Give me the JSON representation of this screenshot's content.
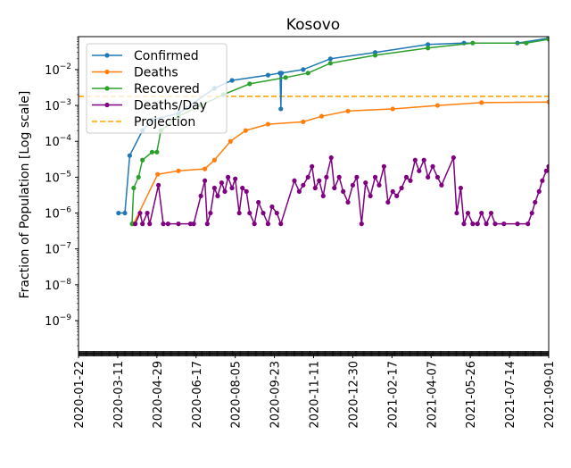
{
  "chart_data": {
    "type": "line",
    "title": "Kosovo",
    "xlabel": "",
    "ylabel": "Fraction of Population [Log scale]",
    "yscale": "log",
    "ylim": [
      1.2e-10,
      0.083
    ],
    "xlim": [
      "2020-01-22",
      "2021-09-01"
    ],
    "grid": false,
    "legend_position": "top-left",
    "x_tick_labels": [
      "2020-01-22",
      "2020-03-11",
      "2020-04-29",
      "2020-06-17",
      "2020-08-05",
      "2020-09-23",
      "2020-11-11",
      "2020-12-30",
      "2021-02-17",
      "2021-04-07",
      "2021-05-26",
      "2021-07-14",
      "2021-09-01"
    ],
    "y_ticks": [
      {
        "value": 0.01,
        "base": "10",
        "exp": "−2"
      },
      {
        "value": 0.001,
        "base": "10",
        "exp": "−3"
      },
      {
        "value": 0.0001,
        "base": "10",
        "exp": "−4"
      },
      {
        "value": 1e-05,
        "base": "10",
        "exp": "−5"
      },
      {
        "value": 1e-06,
        "base": "10",
        "exp": "−6"
      },
      {
        "value": 1e-07,
        "base": "10",
        "exp": "−7"
      },
      {
        "value": 1e-08,
        "base": "10",
        "exp": "−8"
      },
      {
        "value": 1e-09,
        "base": "10",
        "exp": "−9"
      }
    ],
    "series": [
      {
        "name": "Confirmed",
        "color": "#1f77b4",
        "points": [
          [
            "2020-03-12",
            1e-06
          ],
          [
            "2020-03-20",
            1e-06
          ],
          [
            "2020-03-26",
            4e-05
          ],
          [
            "2020-04-11",
            0.0002
          ],
          [
            "2020-04-23",
            0.0004
          ],
          [
            "2020-05-26",
            0.0006
          ],
          [
            "2020-07-10",
            0.003
          ],
          [
            "2020-08-01",
            0.005
          ],
          [
            "2020-09-15",
            0.007
          ],
          [
            "2020-09-30",
            0.008
          ],
          [
            "2020-10-01",
            0.0008
          ],
          [
            "2020-10-02",
            0.008
          ],
          [
            "2020-10-29",
            0.01
          ],
          [
            "2020-12-02",
            0.02
          ],
          [
            "2021-01-27",
            0.03
          ],
          [
            "2021-04-03",
            0.05
          ],
          [
            "2021-05-18",
            0.055
          ],
          [
            "2021-07-24",
            0.055
          ],
          [
            "2021-09-01",
            0.075
          ]
        ]
      },
      {
        "name": "Deaths",
        "color": "#ff7f0e",
        "points": [
          [
            "2020-03-31",
            5e-07
          ],
          [
            "2020-04-30",
            1.2e-05
          ],
          [
            "2020-05-26",
            1.5e-05
          ],
          [
            "2020-06-28",
            1.7e-05
          ],
          [
            "2020-07-10",
            3e-05
          ],
          [
            "2020-07-30",
            0.0001
          ],
          [
            "2020-08-18",
            0.0002
          ],
          [
            "2020-09-15",
            0.0003
          ],
          [
            "2020-10-29",
            0.00035
          ],
          [
            "2020-11-21",
            0.0005
          ],
          [
            "2020-12-24",
            0.0007
          ],
          [
            "2021-02-18",
            0.0008
          ],
          [
            "2021-04-15",
            0.001
          ],
          [
            "2021-06-09",
            0.0012
          ],
          [
            "2021-09-01",
            0.00125
          ]
        ]
      },
      {
        "name": "Recovered",
        "color": "#2ca02c",
        "points": [
          [
            "2020-03-29",
            5e-07
          ],
          [
            "2020-03-31",
            5e-06
          ],
          [
            "2020-04-06",
            1e-05
          ],
          [
            "2020-04-11",
            3e-05
          ],
          [
            "2020-04-23",
            5e-05
          ],
          [
            "2020-04-29",
            5e-05
          ],
          [
            "2020-05-04",
            0.0002
          ],
          [
            "2020-05-26",
            0.0005
          ],
          [
            "2020-06-23",
            0.001
          ],
          [
            "2020-07-21",
            0.002
          ],
          [
            "2020-08-23",
            0.004
          ],
          [
            "2020-10-07",
            0.006
          ],
          [
            "2020-11-04",
            0.008
          ],
          [
            "2020-12-02",
            0.015
          ],
          [
            "2021-01-27",
            0.025
          ],
          [
            "2021-04-03",
            0.04
          ],
          [
            "2021-05-29",
            0.055
          ],
          [
            "2021-08-04",
            0.055
          ],
          [
            "2021-09-01",
            0.07
          ]
        ]
      },
      {
        "name": "Deaths/Day",
        "color": "#800080",
        "points": [
          [
            "2020-04-02",
            5e-07
          ],
          [
            "2020-04-08",
            1e-06
          ],
          [
            "2020-04-11",
            5e-07
          ],
          [
            "2020-04-17",
            1e-06
          ],
          [
            "2020-04-20",
            5e-07
          ],
          [
            "2020-05-01",
            6e-06
          ],
          [
            "2020-05-07",
            5e-07
          ],
          [
            "2020-05-13",
            5e-07
          ],
          [
            "2020-05-26",
            5e-07
          ],
          [
            "2020-06-10",
            5e-07
          ],
          [
            "2020-06-14",
            5e-07
          ],
          [
            "2020-06-23",
            3e-06
          ],
          [
            "2020-06-28",
            8e-06
          ],
          [
            "2020-07-01",
            5e-07
          ],
          [
            "2020-07-05",
            1e-06
          ],
          [
            "2020-07-10",
            5e-06
          ],
          [
            "2020-07-14",
            3e-06
          ],
          [
            "2020-07-19",
            7e-06
          ],
          [
            "2020-07-23",
            4e-06
          ],
          [
            "2020-07-27",
            1e-05
          ],
          [
            "2020-08-01",
            5e-06
          ],
          [
            "2020-08-05",
            9e-06
          ],
          [
            "2020-08-10",
            1e-06
          ],
          [
            "2020-08-14",
            5e-06
          ],
          [
            "2020-08-19",
            4e-06
          ],
          [
            "2020-08-23",
            1e-06
          ],
          [
            "2020-08-29",
            5e-07
          ],
          [
            "2020-09-03",
            2e-06
          ],
          [
            "2020-09-09",
            1e-06
          ],
          [
            "2020-09-15",
            5e-07
          ],
          [
            "2020-09-20",
            1.5e-06
          ],
          [
            "2020-09-26",
            1e-06
          ],
          [
            "2020-10-01",
            5e-07
          ],
          [
            "2020-10-18",
            8e-06
          ],
          [
            "2020-10-24",
            4e-06
          ],
          [
            "2020-10-29",
            6e-06
          ],
          [
            "2020-11-04",
            1e-05
          ],
          [
            "2020-11-09",
            2e-05
          ],
          [
            "2020-11-13",
            5e-06
          ],
          [
            "2020-11-18",
            8e-06
          ],
          [
            "2020-11-23",
            3e-06
          ],
          [
            "2020-11-27",
            1e-05
          ],
          [
            "2020-12-03",
            3.5e-05
          ],
          [
            "2020-12-07",
            5e-06
          ],
          [
            "2020-12-13",
            1e-05
          ],
          [
            "2020-12-18",
            4e-06
          ],
          [
            "2020-12-24",
            2e-06
          ],
          [
            "2020-12-30",
            6e-06
          ],
          [
            "2021-01-04",
            1e-05
          ],
          [
            "2021-01-10",
            5e-07
          ],
          [
            "2021-01-15",
            7e-06
          ],
          [
            "2021-01-21",
            3e-06
          ],
          [
            "2021-01-27",
            1e-05
          ],
          [
            "2021-02-01",
            6e-06
          ],
          [
            "2021-02-07",
            2e-05
          ],
          [
            "2021-02-12",
            2e-06
          ],
          [
            "2021-02-18",
            4e-06
          ],
          [
            "2021-02-23",
            3e-06
          ],
          [
            "2021-03-01",
            5e-06
          ],
          [
            "2021-03-07",
            1e-05
          ],
          [
            "2021-03-12",
            8e-06
          ],
          [
            "2021-03-18",
            3e-05
          ],
          [
            "2021-03-23",
            1.5e-05
          ],
          [
            "2021-03-29",
            3e-05
          ],
          [
            "2021-04-03",
            1e-05
          ],
          [
            "2021-04-09",
            2e-05
          ],
          [
            "2021-04-15",
            1e-05
          ],
          [
            "2021-04-20",
            6e-06
          ],
          [
            "2021-05-05",
            3.5e-05
          ],
          [
            "2021-05-09",
            1e-06
          ],
          [
            "2021-05-14",
            5e-06
          ],
          [
            "2021-05-18",
            5e-07
          ],
          [
            "2021-05-23",
            1e-06
          ],
          [
            "2021-05-29",
            5e-07
          ],
          [
            "2021-06-04",
            5e-07
          ],
          [
            "2021-06-09",
            1e-06
          ],
          [
            "2021-06-15",
            5e-07
          ],
          [
            "2021-06-21",
            1e-06
          ],
          [
            "2021-06-26",
            5e-07
          ],
          [
            "2021-07-07",
            5e-07
          ],
          [
            "2021-07-24",
            5e-07
          ],
          [
            "2021-08-06",
            5e-07
          ],
          [
            "2021-08-11",
            1e-06
          ],
          [
            "2021-08-15",
            2e-06
          ],
          [
            "2021-08-20",
            4e-06
          ],
          [
            "2021-08-24",
            8e-06
          ],
          [
            "2021-08-29",
            1.5e-05
          ],
          [
            "2021-09-01",
            2e-05
          ]
        ]
      }
    ],
    "projection": {
      "name": "Projection",
      "color": "#ffa500",
      "value": 0.0018,
      "style": "dashed"
    }
  }
}
